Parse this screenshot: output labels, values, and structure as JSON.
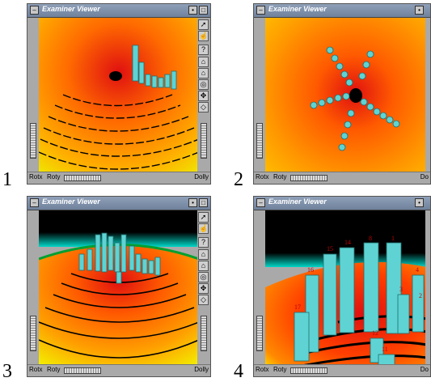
{
  "figure_labels": [
    "1",
    "2",
    "3",
    "4"
  ],
  "viewers": [
    {
      "title": "Examiner Viewer",
      "rotx": "Rotx",
      "roty": "Roty",
      "dolly": "Dolly"
    },
    {
      "title": "Examiner Viewer",
      "rotx": "Rotx",
      "roty": "Roty",
      "dolly": "Do"
    },
    {
      "title": "Examiner Viewer",
      "rotx": "Rotx",
      "roty": "Roty",
      "dolly": "Dolly"
    },
    {
      "title": "Examiner Viewer",
      "rotx": "Rotx",
      "roty": "Roty",
      "dolly": "Do"
    }
  ],
  "toolbar_icons": [
    "pick-arrow-icon",
    "view-hand-icon",
    "help-icon",
    "home-icon",
    "set-home-icon",
    "view-all-icon",
    "seek-icon",
    "projection-icon"
  ],
  "toolbar_glyphs": [
    "➚",
    "☝",
    "?",
    "⌂",
    "⌂",
    "◎",
    "✥",
    "◇"
  ],
  "column_labels": [
    "14",
    "8",
    "1",
    "15",
    "16",
    "3",
    "4",
    "2",
    "17",
    "12",
    "11"
  ],
  "colors": {
    "ground_center": "#e01010",
    "ground_mid": "#ff8a00",
    "ground_edge": "#ffe600",
    "horizon": "#00d7c8",
    "sky": "#000000",
    "column": "#5fd3d3",
    "label": "#c00000"
  }
}
